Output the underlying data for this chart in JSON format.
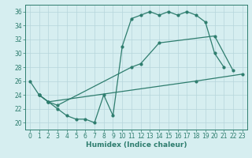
{
  "line1_x": [
    0,
    1,
    2,
    3,
    4,
    5,
    6,
    7,
    8,
    9,
    10,
    11,
    12,
    13,
    14,
    15,
    16,
    17,
    18,
    19,
    20,
    21
  ],
  "line1_y": [
    26,
    24,
    23,
    22,
    21,
    20.5,
    20.5,
    20,
    24,
    21,
    31,
    35,
    35.5,
    36,
    35.5,
    36,
    35.5,
    36,
    35.5,
    34.5,
    30,
    28
  ],
  "line2_x": [
    1,
    2,
    3,
    11,
    12,
    14,
    20,
    22
  ],
  "line2_y": [
    24,
    23,
    22.5,
    28,
    28.5,
    31.5,
    32.5,
    27.5
  ],
  "line3_x": [
    1,
    2,
    18,
    23
  ],
  "line3_y": [
    24,
    23,
    26,
    27
  ],
  "xlabel": "Humidex (Indice chaleur)",
  "xlim": [
    -0.5,
    23.5
  ],
  "ylim": [
    19,
    37
  ],
  "yticks": [
    20,
    22,
    24,
    26,
    28,
    30,
    32,
    34,
    36
  ],
  "xticks": [
    0,
    1,
    2,
    3,
    4,
    5,
    6,
    7,
    8,
    9,
    10,
    11,
    12,
    13,
    14,
    15,
    16,
    17,
    18,
    19,
    20,
    21,
    22,
    23
  ],
  "line_color": "#2e7d6e",
  "bg_color": "#d6eef0",
  "grid_color": "#b5d5db"
}
